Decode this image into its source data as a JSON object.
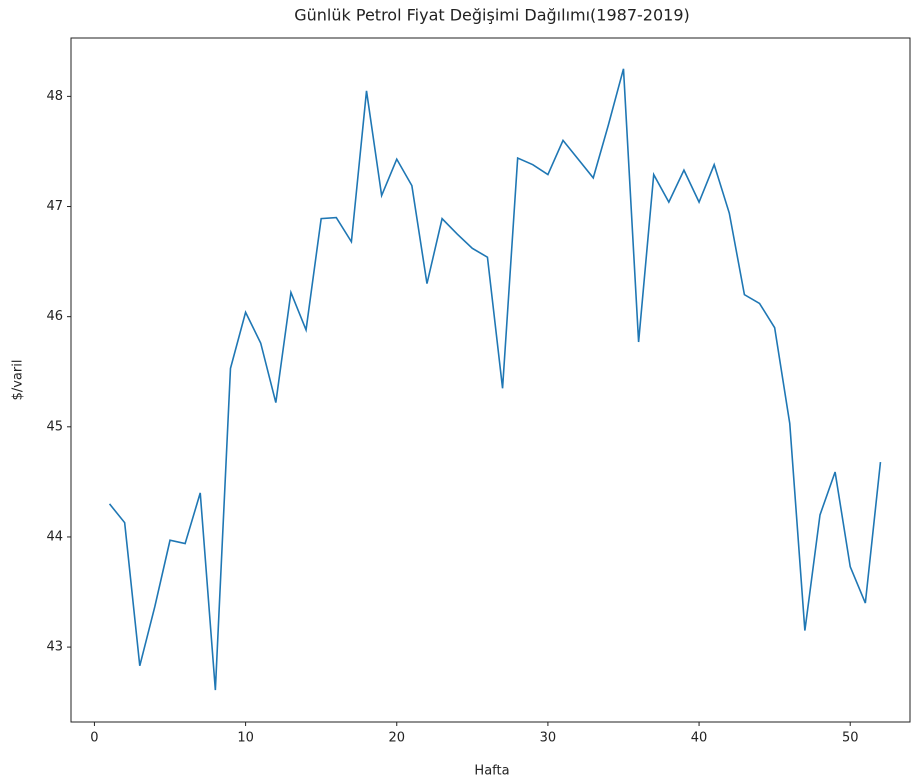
{
  "chart_data": {
    "type": "line",
    "title": "Günlük Petrol Fiyat Değişimi Dağılımı(1987-2019)",
    "xlabel": "Hafta",
    "ylabel": "$/varil",
    "x": [
      1,
      2,
      3,
      4,
      5,
      6,
      7,
      8,
      9,
      10,
      11,
      12,
      13,
      14,
      15,
      16,
      17,
      18,
      19,
      20,
      21,
      22,
      23,
      24,
      25,
      26,
      27,
      28,
      29,
      30,
      31,
      32,
      33,
      34,
      35,
      36,
      37,
      38,
      39,
      40,
      41,
      42,
      43,
      44,
      45,
      46,
      47,
      48,
      49,
      50,
      51,
      52
    ],
    "series": [
      {
        "name": "$/varil",
        "color": "#1f77b4",
        "values": [
          44.3,
          44.13,
          42.83,
          43.37,
          43.97,
          43.94,
          44.4,
          42.61,
          45.53,
          46.04,
          45.76,
          45.22,
          46.22,
          45.88,
          46.89,
          46.9,
          46.68,
          48.05,
          47.1,
          47.43,
          47.19,
          46.3,
          46.89,
          46.75,
          46.62,
          46.54,
          45.35,
          47.44,
          47.38,
          47.29,
          47.6,
          47.43,
          47.26,
          47.74,
          48.25,
          45.77,
          47.29,
          47.04,
          47.33,
          47.04,
          47.38,
          46.94,
          46.2,
          46.12,
          45.9,
          45.03,
          43.15,
          44.2,
          44.59,
          43.73,
          43.4,
          44.68
        ]
      }
    ],
    "xlim": [
      -1.55,
      54.55
    ],
    "xticks": [
      0,
      10,
      20,
      30,
      40,
      50
    ],
    "ylim": [
      42.32,
      48.53
    ],
    "yticks": [
      43,
      44,
      45,
      46,
      47,
      48
    ]
  }
}
